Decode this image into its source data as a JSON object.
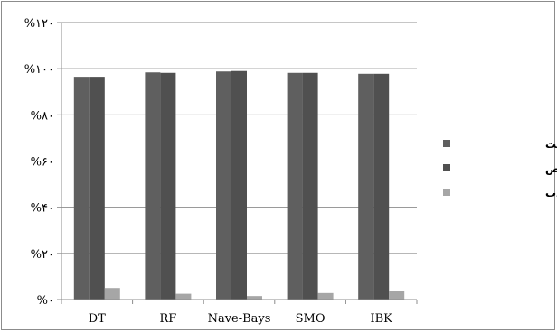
{
  "chart_data": {
    "type": "bar",
    "categories": [
      "DT",
      "RF",
      "Nave-Bays",
      "SMO",
      "IBK"
    ],
    "series": [
      {
        "name": "نرخ مثبت درست",
        "values": [
          96.5,
          98.4,
          98.8,
          98.2,
          97.8
        ],
        "color": "#5f5f5f"
      },
      {
        "name": "دقت تشخیص",
        "values": [
          96.5,
          98.2,
          99.0,
          98.2,
          97.8
        ],
        "color": "#505050"
      },
      {
        "name": "نرخ مثبت کاذب",
        "values": [
          5.0,
          2.5,
          1.5,
          2.8,
          3.8
        ],
        "color": "#a6a6a6"
      }
    ],
    "ylim": [
      0,
      120
    ],
    "yticks": [
      0,
      20,
      40,
      60,
      80,
      100,
      120
    ],
    "ytick_labels": [
      "%۰",
      "%۲۰",
      "%۴۰",
      "%۶۰",
      "%۸۰",
      "%۱۰۰",
      "%۱۲۰"
    ],
    "grid": true,
    "legend_position": "right"
  }
}
